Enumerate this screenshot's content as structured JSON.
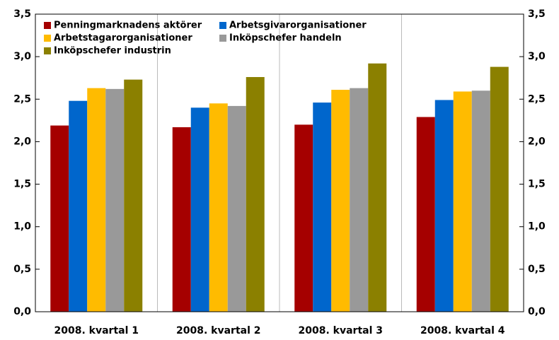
{
  "chart_data": {
    "type": "bar",
    "categories": [
      "2008. kvartal 1",
      "2008. kvartal 2",
      "2008. kvartal 3",
      "2008. kvartal 4"
    ],
    "series": [
      {
        "name": "Penningmarknadens aktörer",
        "color": "#a50000",
        "values": [
          2.19,
          2.17,
          2.2,
          2.29
        ]
      },
      {
        "name": "Arbetsgivarorganisationer",
        "color": "#0066cc",
        "values": [
          2.48,
          2.4,
          2.46,
          2.49
        ]
      },
      {
        "name": "Arbetstagarorganisationer",
        "color": "#ffbb00",
        "values": [
          2.63,
          2.45,
          2.61,
          2.59
        ]
      },
      {
        "name": "Inköpschefer handeln",
        "color": "#999999",
        "values": [
          2.62,
          2.42,
          2.63,
          2.6
        ]
      },
      {
        "name": "Inköpschefer industrin",
        "color": "#8b8000",
        "values": [
          2.73,
          2.76,
          2.92,
          2.88
        ]
      }
    ],
    "ylim": [
      0,
      3.5
    ],
    "yticks": [
      {
        "value": 0,
        "label": "0,0"
      },
      {
        "value": 0.5,
        "label": "0,5"
      },
      {
        "value": 1,
        "label": "1,0"
      },
      {
        "value": 1.5,
        "label": "1,5"
      },
      {
        "value": 2,
        "label": "2,0"
      },
      {
        "value": 2.5,
        "label": "2,5"
      },
      {
        "value": 3,
        "label": "3,0"
      },
      {
        "value": 3.5,
        "label": "3,5"
      }
    ],
    "legend": "upper left"
  }
}
